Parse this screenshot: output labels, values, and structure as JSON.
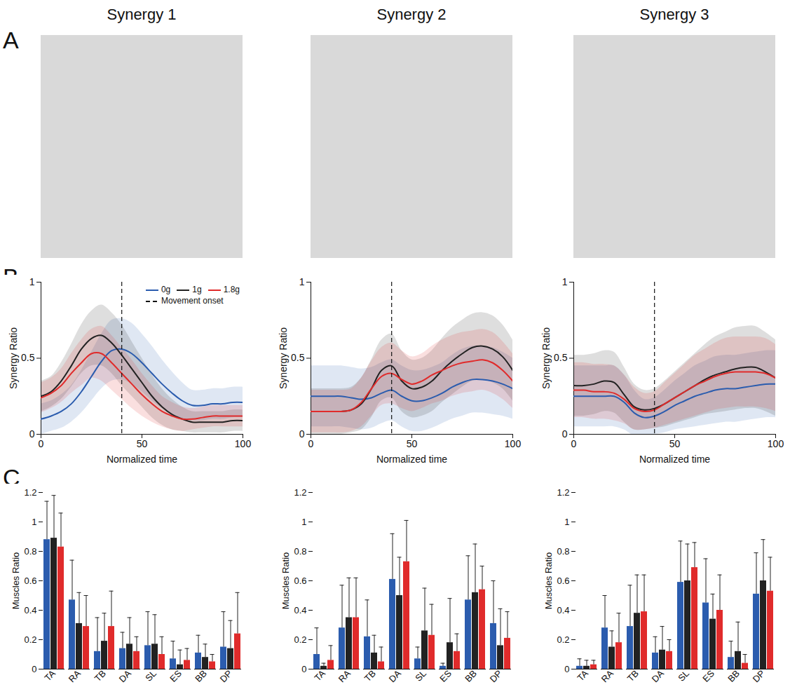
{
  "figure": {
    "panel_letters": [
      "A",
      "B",
      "C"
    ],
    "column_titles": [
      "Synergy 1",
      "Synergy 2",
      "Synergy 3"
    ]
  },
  "chart_data": [
    {
      "type": "line",
      "x": [
        0,
        5,
        10,
        15,
        20,
        25,
        30,
        35,
        40,
        45,
        50,
        55,
        60,
        65,
        70,
        75,
        80,
        85,
        90,
        95,
        100
      ],
      "xlim": [
        0,
        100
      ],
      "xticks": [
        0,
        50,
        100
      ],
      "ylim": [
        0,
        1
      ],
      "yticks": [
        0,
        0.5,
        1
      ],
      "xlabel": "Normalized time",
      "ylabel": "Synergy Ratio",
      "legend": "top-right",
      "vline": {
        "x": 40,
        "label": "Movement onset",
        "line_style": "dashed"
      },
      "series": [
        {
          "name": "0g",
          "color": "#2b5cae",
          "values": [
            0.1,
            0.12,
            0.15,
            0.2,
            0.28,
            0.38,
            0.48,
            0.55,
            0.56,
            0.53,
            0.47,
            0.4,
            0.33,
            0.27,
            0.22,
            0.19,
            0.19,
            0.2,
            0.2,
            0.21,
            0.21
          ],
          "sd": [
            0.1,
            0.1,
            0.11,
            0.12,
            0.14,
            0.16,
            0.18,
            0.2,
            0.2,
            0.2,
            0.19,
            0.18,
            0.16,
            0.14,
            0.12,
            0.1,
            0.1,
            0.1,
            0.1,
            0.1,
            0.1
          ]
        },
        {
          "name": "1g",
          "color": "#222222",
          "values": [
            0.25,
            0.28,
            0.35,
            0.45,
            0.56,
            0.63,
            0.65,
            0.6,
            0.52,
            0.43,
            0.34,
            0.25,
            0.18,
            0.13,
            0.1,
            0.08,
            0.08,
            0.08,
            0.08,
            0.09,
            0.09
          ],
          "sd": [
            0.1,
            0.1,
            0.12,
            0.14,
            0.16,
            0.18,
            0.2,
            0.2,
            0.2,
            0.18,
            0.16,
            0.14,
            0.12,
            0.1,
            0.08,
            0.07,
            0.07,
            0.07,
            0.07,
            0.07,
            0.07
          ]
        },
        {
          "name": "1.8g",
          "color": "#e02b2b",
          "values": [
            0.24,
            0.27,
            0.32,
            0.4,
            0.47,
            0.53,
            0.53,
            0.47,
            0.4,
            0.33,
            0.26,
            0.2,
            0.15,
            0.12,
            0.1,
            0.1,
            0.11,
            0.12,
            0.12,
            0.12,
            0.12
          ],
          "sd": [
            0.1,
            0.1,
            0.11,
            0.13,
            0.15,
            0.16,
            0.18,
            0.18,
            0.17,
            0.16,
            0.14,
            0.12,
            0.1,
            0.09,
            0.08,
            0.07,
            0.07,
            0.07,
            0.07,
            0.07,
            0.07
          ]
        }
      ]
    },
    {
      "type": "line",
      "x": [
        0,
        5,
        10,
        15,
        20,
        25,
        30,
        35,
        40,
        45,
        50,
        55,
        60,
        65,
        70,
        75,
        80,
        85,
        90,
        95,
        100
      ],
      "xlim": [
        0,
        100
      ],
      "xticks": [
        0,
        50,
        100
      ],
      "ylim": [
        0,
        1
      ],
      "yticks": [
        0,
        0.5,
        1
      ],
      "xlabel": "Normalized time",
      "ylabel": "Synergy Ratio",
      "vline": {
        "x": 40,
        "line_style": "dashed"
      },
      "series": [
        {
          "name": "0g",
          "color": "#2b5cae",
          "values": [
            0.25,
            0.25,
            0.25,
            0.25,
            0.24,
            0.23,
            0.24,
            0.27,
            0.29,
            0.25,
            0.22,
            0.22,
            0.24,
            0.27,
            0.31,
            0.34,
            0.36,
            0.36,
            0.35,
            0.33,
            0.3
          ],
          "sd": [
            0.2,
            0.2,
            0.2,
            0.2,
            0.2,
            0.2,
            0.2,
            0.2,
            0.2,
            0.2,
            0.2,
            0.2,
            0.2,
            0.2,
            0.21,
            0.22,
            0.22,
            0.22,
            0.22,
            0.21,
            0.2
          ]
        },
        {
          "name": "1g",
          "color": "#222222",
          "values": [
            0.15,
            0.15,
            0.15,
            0.15,
            0.16,
            0.2,
            0.3,
            0.42,
            0.45,
            0.35,
            0.3,
            0.31,
            0.35,
            0.42,
            0.48,
            0.53,
            0.57,
            0.58,
            0.56,
            0.51,
            0.42
          ],
          "sd": [
            0.15,
            0.15,
            0.15,
            0.15,
            0.15,
            0.17,
            0.19,
            0.2,
            0.21,
            0.2,
            0.19,
            0.19,
            0.2,
            0.21,
            0.22,
            0.22,
            0.22,
            0.22,
            0.22,
            0.21,
            0.2
          ]
        },
        {
          "name": "1.8g",
          "color": "#e02b2b",
          "values": [
            0.15,
            0.15,
            0.15,
            0.15,
            0.16,
            0.21,
            0.3,
            0.38,
            0.4,
            0.36,
            0.33,
            0.35,
            0.39,
            0.42,
            0.45,
            0.47,
            0.48,
            0.49,
            0.47,
            0.42,
            0.35
          ],
          "sd": [
            0.14,
            0.14,
            0.14,
            0.14,
            0.14,
            0.16,
            0.18,
            0.19,
            0.2,
            0.19,
            0.18,
            0.18,
            0.19,
            0.2,
            0.2,
            0.2,
            0.2,
            0.2,
            0.2,
            0.19,
            0.18
          ]
        }
      ]
    },
    {
      "type": "line",
      "x": [
        0,
        5,
        10,
        15,
        20,
        25,
        30,
        35,
        40,
        45,
        50,
        55,
        60,
        65,
        70,
        75,
        80,
        85,
        90,
        95,
        100
      ],
      "xlim": [
        0,
        100
      ],
      "xticks": [
        0,
        50,
        100
      ],
      "ylim": [
        0,
        1
      ],
      "yticks": [
        0,
        0.5,
        1
      ],
      "xlabel": "Normalized time",
      "ylabel": "Synergy Ratio",
      "vline": {
        "x": 40,
        "line_style": "dashed"
      },
      "series": [
        {
          "name": "0g",
          "color": "#2b5cae",
          "values": [
            0.25,
            0.25,
            0.25,
            0.25,
            0.25,
            0.21,
            0.14,
            0.11,
            0.12,
            0.15,
            0.19,
            0.22,
            0.25,
            0.27,
            0.29,
            0.3,
            0.3,
            0.31,
            0.32,
            0.33,
            0.33
          ],
          "sd": [
            0.2,
            0.2,
            0.2,
            0.2,
            0.2,
            0.18,
            0.15,
            0.12,
            0.12,
            0.14,
            0.16,
            0.18,
            0.2,
            0.21,
            0.22,
            0.22,
            0.22,
            0.22,
            0.22,
            0.22,
            0.22
          ]
        },
        {
          "name": "1g",
          "color": "#222222",
          "values": [
            0.32,
            0.32,
            0.33,
            0.35,
            0.34,
            0.26,
            0.18,
            0.16,
            0.17,
            0.2,
            0.24,
            0.28,
            0.32,
            0.36,
            0.39,
            0.41,
            0.43,
            0.44,
            0.44,
            0.41,
            0.37
          ],
          "sd": [
            0.2,
            0.2,
            0.2,
            0.2,
            0.2,
            0.18,
            0.15,
            0.13,
            0.13,
            0.15,
            0.17,
            0.19,
            0.21,
            0.23,
            0.25,
            0.26,
            0.27,
            0.27,
            0.27,
            0.26,
            0.25
          ]
        },
        {
          "name": "1.8g",
          "color": "#e02b2b",
          "values": [
            0.29,
            0.29,
            0.28,
            0.28,
            0.27,
            0.23,
            0.17,
            0.15,
            0.16,
            0.2,
            0.24,
            0.28,
            0.32,
            0.35,
            0.38,
            0.4,
            0.41,
            0.41,
            0.41,
            0.4,
            0.37
          ],
          "sd": [
            0.18,
            0.18,
            0.18,
            0.18,
            0.18,
            0.16,
            0.14,
            0.12,
            0.12,
            0.14,
            0.16,
            0.18,
            0.2,
            0.21,
            0.22,
            0.23,
            0.23,
            0.23,
            0.23,
            0.23,
            0.22
          ]
        }
      ]
    },
    {
      "type": "bar",
      "categories": [
        "TA",
        "RA",
        "TB",
        "DA",
        "SL",
        "ES",
        "BB",
        "DP"
      ],
      "ylim": [
        0,
        1.2
      ],
      "yticks": [
        0,
        0.2,
        0.4,
        0.6,
        0.8,
        1,
        1.2
      ],
      "ylabel": "Muscles Ratio",
      "series": [
        {
          "name": "0g",
          "color": "#2b5cae",
          "values": [
            0.88,
            0.47,
            0.12,
            0.14,
            0.16,
            0.07,
            0.11,
            0.15
          ],
          "errors": [
            0.26,
            0.27,
            0.23,
            0.11,
            0.23,
            0.12,
            0.12,
            0.24
          ]
        },
        {
          "name": "1g",
          "color": "#222222",
          "values": [
            0.89,
            0.31,
            0.19,
            0.17,
            0.17,
            0.03,
            0.08,
            0.14
          ],
          "errors": [
            0.29,
            0.21,
            0.19,
            0.18,
            0.2,
            0.1,
            0.09,
            0.19
          ]
        },
        {
          "name": "1.8g",
          "color": "#e02b2b",
          "values": [
            0.83,
            0.29,
            0.29,
            0.12,
            0.1,
            0.06,
            0.05,
            0.24
          ],
          "errors": [
            0.23,
            0.21,
            0.24,
            0.1,
            0.12,
            0.08,
            0.05,
            0.28
          ]
        }
      ]
    },
    {
      "type": "bar",
      "categories": [
        "TA",
        "RA",
        "TB",
        "DA",
        "SL",
        "ES",
        "BB",
        "DP"
      ],
      "ylim": [
        0,
        1.2
      ],
      "yticks": [
        0,
        0.2,
        0.4,
        0.6,
        0.8,
        1,
        1.2
      ],
      "ylabel": "Muscles Ratio",
      "series": [
        {
          "name": "0g",
          "color": "#2b5cae",
          "values": [
            0.1,
            0.28,
            0.22,
            0.61,
            0.07,
            0.02,
            0.47,
            0.31
          ],
          "errors": [
            0.18,
            0.29,
            0.25,
            0.31,
            0.08,
            0.02,
            0.3,
            0.29
          ]
        },
        {
          "name": "1g",
          "color": "#222222",
          "values": [
            0.02,
            0.35,
            0.11,
            0.5,
            0.26,
            0.18,
            0.52,
            0.16
          ],
          "errors": [
            0.02,
            0.27,
            0.12,
            0.26,
            0.29,
            0.3,
            0.33,
            0.25
          ]
        },
        {
          "name": "1.8g",
          "color": "#e02b2b",
          "values": [
            0.06,
            0.35,
            0.05,
            0.73,
            0.23,
            0.12,
            0.54,
            0.21
          ],
          "errors": [
            0.1,
            0.27,
            0.1,
            0.28,
            0.21,
            0.12,
            0.16,
            0.18
          ]
        }
      ]
    },
    {
      "type": "bar",
      "categories": [
        "TA",
        "RA",
        "TB",
        "DA",
        "SL",
        "ES",
        "BB",
        "DP"
      ],
      "ylim": [
        0,
        1.2
      ],
      "yticks": [
        0,
        0.2,
        0.4,
        0.6,
        0.8,
        1,
        1.2
      ],
      "ylabel": "Muscles Ratio",
      "series": [
        {
          "name": "0g",
          "color": "#2b5cae",
          "values": [
            0.02,
            0.28,
            0.29,
            0.11,
            0.59,
            0.45,
            0.08,
            0.51
          ],
          "errors": [
            0.05,
            0.22,
            0.28,
            0.11,
            0.28,
            0.3,
            0.11,
            0.28
          ]
        },
        {
          "name": "1g",
          "color": "#222222",
          "values": [
            0.02,
            0.15,
            0.38,
            0.13,
            0.6,
            0.34,
            0.12,
            0.6
          ],
          "errors": [
            0.04,
            0.11,
            0.26,
            0.16,
            0.25,
            0.17,
            0.2,
            0.28
          ]
        },
        {
          "name": "1.8g",
          "color": "#e02b2b",
          "values": [
            0.03,
            0.18,
            0.39,
            0.12,
            0.69,
            0.4,
            0.04,
            0.53
          ],
          "errors": [
            0.03,
            0.2,
            0.25,
            0.08,
            0.17,
            0.24,
            0.06,
            0.23
          ]
        }
      ]
    }
  ]
}
